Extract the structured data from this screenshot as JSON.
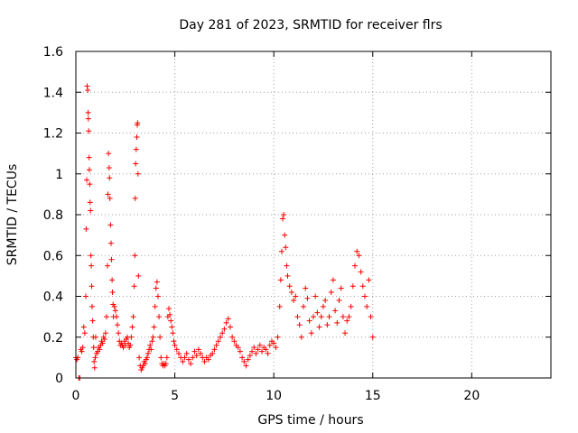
{
  "chart_data": {
    "type": "scatter",
    "title": "Day 281 of 2023, SRMTID for receiver flrs",
    "xlabel": "GPS time / hours",
    "ylabel": "SRMTID / TECUs",
    "xlim": [
      0,
      24
    ],
    "ylim": [
      0,
      1.6
    ],
    "x_ticks": [
      0,
      5,
      10,
      15,
      20
    ],
    "x_tick_labels": [
      "0",
      "5",
      "10",
      "15",
      "20"
    ],
    "y_ticks": [
      0,
      0.2,
      0.4,
      0.6,
      0.8,
      1,
      1.2,
      1.4,
      1.6
    ],
    "y_tick_labels": [
      "0",
      "0.2",
      "0.4",
      "0.6",
      "0.8",
      "1",
      "1.2",
      "1.4",
      "1.6"
    ],
    "grid": true,
    "marker": "+",
    "series": [
      {
        "name": "SRMTID",
        "color": "#ff0000",
        "points": [
          [
            0.0,
            0.1
          ],
          [
            0.05,
            0.09
          ],
          [
            0.1,
            0.1
          ],
          [
            0.15,
            0.0
          ],
          [
            0.2,
            0.0
          ],
          [
            0.25,
            0.14
          ],
          [
            0.3,
            0.13
          ],
          [
            0.35,
            0.15
          ],
          [
            0.4,
            0.25
          ],
          [
            0.45,
            0.22
          ],
          [
            0.5,
            0.4
          ],
          [
            0.52,
            0.73
          ],
          [
            0.55,
            0.97
          ],
          [
            0.57,
            1.43
          ],
          [
            0.6,
            1.41
          ],
          [
            0.62,
            1.3
          ],
          [
            0.63,
            1.27
          ],
          [
            0.65,
            1.21
          ],
          [
            0.67,
            1.08
          ],
          [
            0.68,
            1.02
          ],
          [
            0.7,
            0.95
          ],
          [
            0.72,
            0.86
          ],
          [
            0.74,
            0.82
          ],
          [
            0.76,
            0.6
          ],
          [
            0.78,
            0.55
          ],
          [
            0.8,
            0.45
          ],
          [
            0.82,
            0.35
          ],
          [
            0.85,
            0.28
          ],
          [
            0.88,
            0.2
          ],
          [
            0.9,
            0.15
          ],
          [
            0.92,
            0.08
          ],
          [
            0.95,
            0.05
          ],
          [
            0.98,
            0.1
          ],
          [
            1.0,
            0.2
          ],
          [
            1.05,
            0.12
          ],
          [
            1.1,
            0.13
          ],
          [
            1.15,
            0.15
          ],
          [
            1.2,
            0.14
          ],
          [
            1.25,
            0.16
          ],
          [
            1.3,
            0.18
          ],
          [
            1.35,
            0.17
          ],
          [
            1.4,
            0.2
          ],
          [
            1.45,
            0.19
          ],
          [
            1.5,
            0.22
          ],
          [
            1.55,
            0.3
          ],
          [
            1.6,
            0.55
          ],
          [
            1.62,
            0.9
          ],
          [
            1.65,
            1.1
          ],
          [
            1.68,
            1.03
          ],
          [
            1.7,
            0.98
          ],
          [
            1.72,
            0.88
          ],
          [
            1.75,
            0.75
          ],
          [
            1.78,
            0.66
          ],
          [
            1.8,
            0.58
          ],
          [
            1.83,
            0.48
          ],
          [
            1.85,
            0.42
          ],
          [
            1.88,
            0.36
          ],
          [
            1.9,
            0.3
          ],
          [
            1.95,
            0.35
          ],
          [
            2.0,
            0.33
          ],
          [
            2.05,
            0.3
          ],
          [
            2.1,
            0.26
          ],
          [
            2.15,
            0.22
          ],
          [
            2.2,
            0.18
          ],
          [
            2.25,
            0.16
          ],
          [
            2.3,
            0.17
          ],
          [
            2.35,
            0.16
          ],
          [
            2.4,
            0.15
          ],
          [
            2.45,
            0.18
          ],
          [
            2.5,
            0.16
          ],
          [
            2.55,
            0.19
          ],
          [
            2.6,
            0.2
          ],
          [
            2.65,
            0.17
          ],
          [
            2.7,
            0.15
          ],
          [
            2.75,
            0.16
          ],
          [
            2.8,
            0.2
          ],
          [
            2.85,
            0.25
          ],
          [
            2.9,
            0.3
          ],
          [
            2.95,
            0.45
          ],
          [
            2.98,
            0.6
          ],
          [
            3.0,
            0.88
          ],
          [
            3.02,
            1.05
          ],
          [
            3.05,
            1.12
          ],
          [
            3.08,
            1.18
          ],
          [
            3.1,
            1.24
          ],
          [
            3.12,
            1.25
          ],
          [
            3.14,
            1.0
          ],
          [
            3.16,
            0.5
          ],
          [
            3.2,
            0.1
          ],
          [
            3.25,
            0.06
          ],
          [
            3.3,
            0.04
          ],
          [
            3.35,
            0.05
          ],
          [
            3.4,
            0.06
          ],
          [
            3.45,
            0.08
          ],
          [
            3.5,
            0.07
          ],
          [
            3.55,
            0.09
          ],
          [
            3.6,
            0.1
          ],
          [
            3.65,
            0.12
          ],
          [
            3.7,
            0.14
          ],
          [
            3.75,
            0.16
          ],
          [
            3.8,
            0.14
          ],
          [
            3.85,
            0.18
          ],
          [
            3.9,
            0.2
          ],
          [
            3.95,
            0.25
          ],
          [
            4.0,
            0.35
          ],
          [
            4.05,
            0.44
          ],
          [
            4.1,
            0.47
          ],
          [
            4.15,
            0.4
          ],
          [
            4.2,
            0.3
          ],
          [
            4.25,
            0.2
          ],
          [
            4.3,
            0.1
          ],
          [
            4.35,
            0.07
          ],
          [
            4.4,
            0.06
          ],
          [
            4.45,
            0.07
          ],
          [
            4.5,
            0.06
          ],
          [
            4.55,
            0.07
          ],
          [
            4.6,
            0.1
          ],
          [
            4.65,
            0.3
          ],
          [
            4.7,
            0.34
          ],
          [
            4.75,
            0.31
          ],
          [
            4.8,
            0.28
          ],
          [
            4.85,
            0.25
          ],
          [
            4.9,
            0.22
          ],
          [
            4.95,
            0.18
          ],
          [
            5.0,
            0.16
          ],
          [
            5.1,
            0.14
          ],
          [
            5.2,
            0.12
          ],
          [
            5.3,
            0.1
          ],
          [
            5.4,
            0.08
          ],
          [
            5.5,
            0.1
          ],
          [
            5.6,
            0.12
          ],
          [
            5.7,
            0.09
          ],
          [
            5.8,
            0.07
          ],
          [
            5.9,
            0.1
          ],
          [
            6.0,
            0.13
          ],
          [
            6.1,
            0.11
          ],
          [
            6.2,
            0.14
          ],
          [
            6.3,
            0.12
          ],
          [
            6.4,
            0.1
          ],
          [
            6.5,
            0.08
          ],
          [
            6.6,
            0.1
          ],
          [
            6.7,
            0.09
          ],
          [
            6.8,
            0.11
          ],
          [
            6.9,
            0.12
          ],
          [
            7.0,
            0.14
          ],
          [
            7.1,
            0.16
          ],
          [
            7.2,
            0.18
          ],
          [
            7.3,
            0.2
          ],
          [
            7.4,
            0.22
          ],
          [
            7.5,
            0.24
          ],
          [
            7.6,
            0.27
          ],
          [
            7.7,
            0.29
          ],
          [
            7.8,
            0.25
          ],
          [
            7.9,
            0.2
          ],
          [
            8.0,
            0.18
          ],
          [
            8.1,
            0.16
          ],
          [
            8.2,
            0.15
          ],
          [
            8.3,
            0.13
          ],
          [
            8.4,
            0.1
          ],
          [
            8.5,
            0.08
          ],
          [
            8.6,
            0.06
          ],
          [
            8.7,
            0.09
          ],
          [
            8.8,
            0.11
          ],
          [
            8.9,
            0.13
          ],
          [
            9.0,
            0.15
          ],
          [
            9.1,
            0.12
          ],
          [
            9.2,
            0.14
          ],
          [
            9.3,
            0.16
          ],
          [
            9.4,
            0.13
          ],
          [
            9.5,
            0.15
          ],
          [
            9.6,
            0.14
          ],
          [
            9.7,
            0.12
          ],
          [
            9.8,
            0.16
          ],
          [
            9.9,
            0.18
          ],
          [
            10.0,
            0.17
          ],
          [
            10.1,
            0.15
          ],
          [
            10.2,
            0.2
          ],
          [
            10.3,
            0.35
          ],
          [
            10.35,
            0.48
          ],
          [
            10.4,
            0.62
          ],
          [
            10.45,
            0.78
          ],
          [
            10.5,
            0.8
          ],
          [
            10.55,
            0.7
          ],
          [
            10.6,
            0.64
          ],
          [
            10.65,
            0.55
          ],
          [
            10.7,
            0.5
          ],
          [
            10.8,
            0.45
          ],
          [
            10.9,
            0.42
          ],
          [
            11.0,
            0.38
          ],
          [
            11.1,
            0.4
          ],
          [
            11.2,
            0.3
          ],
          [
            11.3,
            0.26
          ],
          [
            11.4,
            0.2
          ],
          [
            11.5,
            0.35
          ],
          [
            11.6,
            0.44
          ],
          [
            11.7,
            0.39
          ],
          [
            11.8,
            0.28
          ],
          [
            11.9,
            0.22
          ],
          [
            12.0,
            0.3
          ],
          [
            12.1,
            0.4
          ],
          [
            12.2,
            0.32
          ],
          [
            12.3,
            0.25
          ],
          [
            12.4,
            0.3
          ],
          [
            12.5,
            0.35
          ],
          [
            12.6,
            0.38
          ],
          [
            12.7,
            0.26
          ],
          [
            12.8,
            0.3
          ],
          [
            12.9,
            0.42
          ],
          [
            13.0,
            0.48
          ],
          [
            13.1,
            0.33
          ],
          [
            13.2,
            0.27
          ],
          [
            13.3,
            0.38
          ],
          [
            13.4,
            0.44
          ],
          [
            13.5,
            0.3
          ],
          [
            13.6,
            0.22
          ],
          [
            13.7,
            0.28
          ],
          [
            13.8,
            0.3
          ],
          [
            13.9,
            0.35
          ],
          [
            14.0,
            0.45
          ],
          [
            14.1,
            0.55
          ],
          [
            14.2,
            0.62
          ],
          [
            14.3,
            0.6
          ],
          [
            14.4,
            0.52
          ],
          [
            14.5,
            0.45
          ],
          [
            14.6,
            0.4
          ],
          [
            14.7,
            0.35
          ],
          [
            14.8,
            0.48
          ],
          [
            14.9,
            0.3
          ],
          [
            15.0,
            0.2
          ]
        ]
      }
    ]
  }
}
